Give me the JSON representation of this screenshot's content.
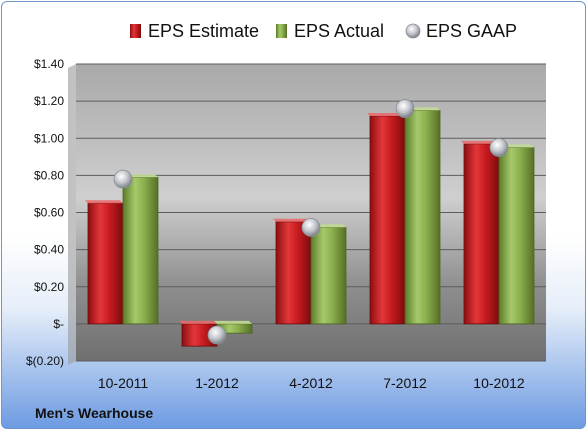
{
  "chart_data": {
    "type": "bar",
    "categories": [
      "10-2011",
      "1-2012",
      "4-2012",
      "7-2012",
      "10-2012"
    ],
    "series": [
      {
        "name": "EPS Estimate",
        "type": "bar",
        "color": "#c0181c",
        "values": [
          0.65,
          -0.12,
          0.55,
          1.12,
          0.97
        ]
      },
      {
        "name": "EPS Actual",
        "type": "bar",
        "color": "#8ab04a",
        "values": [
          0.79,
          -0.05,
          0.52,
          1.15,
          0.95
        ]
      },
      {
        "name": "EPS GAAP",
        "type": "scatter",
        "color": "#b8bcc4",
        "values": [
          0.78,
          -0.06,
          0.52,
          1.16,
          0.95
        ]
      }
    ],
    "yticks": [
      "$1.40",
      "$1.20",
      "$1.00",
      "$0.80",
      "$0.60",
      "$0.40",
      "$0.20",
      "$-",
      "$(0.20)"
    ],
    "ytick_values": [
      1.4,
      1.2,
      1.0,
      0.8,
      0.6,
      0.4,
      0.2,
      0,
      -0.2
    ],
    "ylim": [
      -0.2,
      1.4
    ],
    "grid": true,
    "legend_position": "top"
  },
  "footer": {
    "company": "Men's Wearhouse"
  }
}
